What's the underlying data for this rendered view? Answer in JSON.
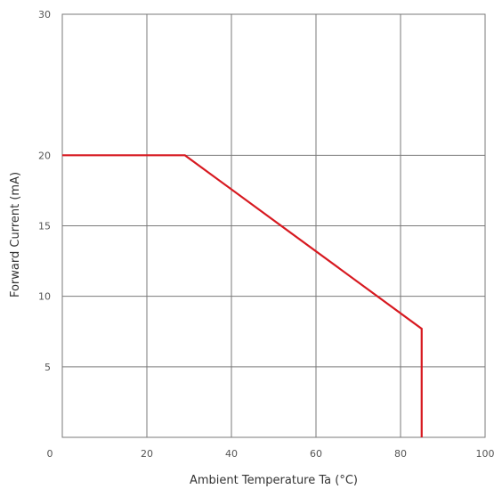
{
  "chart_data": {
    "type": "line",
    "title": "",
    "xlabel": "Ambient Temperature Ta (°C)",
    "ylabel": "Forward Current (mA)",
    "xlim": [
      0,
      100
    ],
    "ylim": [
      0,
      30
    ],
    "x_ticks": [
      {
        "value": 0,
        "label": "0"
      },
      {
        "value": 20,
        "label": "20"
      },
      {
        "value": 40,
        "label": "40"
      },
      {
        "value": 60,
        "label": "60"
      },
      {
        "value": 80,
        "label": "80"
      },
      {
        "value": 100,
        "label": "100"
      }
    ],
    "y_ticks": [
      {
        "value": 5,
        "label": "5"
      },
      {
        "value": 10,
        "label": "10"
      },
      {
        "value": 15,
        "label": "15"
      },
      {
        "value": 20,
        "label": "20"
      },
      {
        "value": 30,
        "label": "30"
      }
    ],
    "x_grid": [
      20,
      40,
      60,
      80
    ],
    "y_grid": [
      5,
      10,
      15,
      20
    ],
    "grid": true,
    "series": [
      {
        "color": "#d71920",
        "points": [
          {
            "x": 0,
            "y": 20
          },
          {
            "x": 29,
            "y": 20
          },
          {
            "x": 85,
            "y": 7.7
          },
          {
            "x": 85,
            "y": 0
          }
        ]
      }
    ]
  }
}
